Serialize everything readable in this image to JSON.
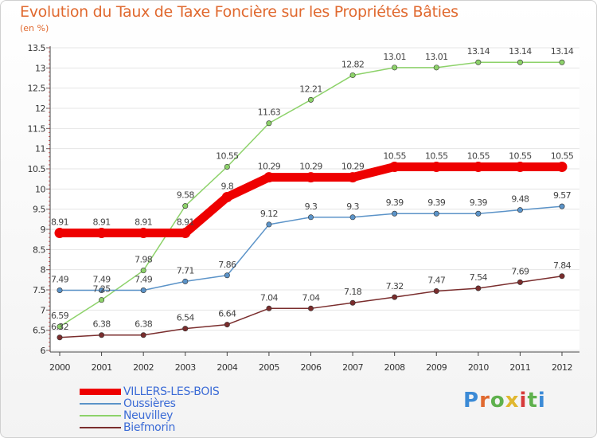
{
  "header": {
    "title": "Evolution du Taux de Taxe Foncière sur les Propriétés Bâties",
    "subtitle": "(en %)"
  },
  "logo": {
    "text": "Proxiti",
    "letter_colors": [
      "#3b8ad6",
      "#e0692f",
      "#5fb14d",
      "#e0b72f",
      "#d63b3b",
      "#5fb14d",
      "#3b8ad6"
    ]
  },
  "chart_data": {
    "type": "line",
    "title": "Evolution du Taux de Taxe Foncière sur les Propriétés Bâties",
    "subtitle": "(en %)",
    "xlabel": "",
    "ylabel": "",
    "x": [
      "2000",
      "2001",
      "2002",
      "2003",
      "2004",
      "2005",
      "2006",
      "2007",
      "2008",
      "2009",
      "2010",
      "2011",
      "2012"
    ],
    "ylim": [
      6,
      13.5
    ],
    "yticks": [
      "6",
      "6.5",
      "7",
      "7.5",
      "8",
      "8.5",
      "9",
      "9.5",
      "10",
      "10.5",
      "11",
      "11.5",
      "12",
      "12.5",
      "13",
      "13.5"
    ],
    "grid": "horizontal",
    "legend_position": "bottom-left",
    "series": [
      {
        "name": "VILLERS-LES-BOIS",
        "color": "#ee0000",
        "values": [
          8.91,
          8.91,
          8.91,
          8.91,
          9.8,
          10.29,
          10.29,
          10.29,
          10.55,
          10.55,
          10.55,
          10.55,
          10.55
        ],
        "labels": [
          "8.91",
          "8.91",
          "8.91",
          "8.91",
          "9.8",
          "10.29",
          "10.29",
          "10.29",
          "10.55",
          "10.55",
          "10.55",
          "10.55",
          "10.55"
        ]
      },
      {
        "name": "Oussières",
        "color": "#5b93c8",
        "values": [
          7.49,
          7.49,
          7.49,
          7.71,
          7.86,
          9.12,
          9.3,
          9.3,
          9.39,
          9.39,
          9.39,
          9.48,
          9.57
        ],
        "labels": [
          "7.49",
          "7.49",
          "7.49",
          "7.71",
          "7.86",
          "9.12",
          "9.3",
          "9.3",
          "9.39",
          "9.39",
          "9.39",
          "9.48",
          "9.57"
        ]
      },
      {
        "name": "Neuvilley",
        "color": "#8dd26a",
        "values": [
          6.59,
          7.25,
          7.98,
          9.58,
          10.55,
          11.63,
          12.21,
          12.82,
          13.01,
          13.01,
          13.14,
          13.14,
          13.14
        ],
        "labels": [
          "6.59",
          "7.25",
          "7.98",
          "9.58",
          "10.55",
          "11.63",
          "12.21",
          "12.82",
          "13.01",
          "13.01",
          "13.14",
          "13.14",
          "13.14"
        ]
      },
      {
        "name": "Biefmorin",
        "color": "#7a2d2d",
        "values": [
          6.32,
          6.38,
          6.38,
          6.54,
          6.64,
          7.04,
          7.04,
          7.18,
          7.32,
          7.47,
          7.54,
          7.69,
          7.84
        ],
        "labels": [
          "6.32",
          "6.38",
          "6.38",
          "6.54",
          "6.64",
          "7.04",
          "7.04",
          "7.18",
          "7.32",
          "7.47",
          "7.54",
          "7.69",
          "7.84"
        ]
      }
    ]
  }
}
